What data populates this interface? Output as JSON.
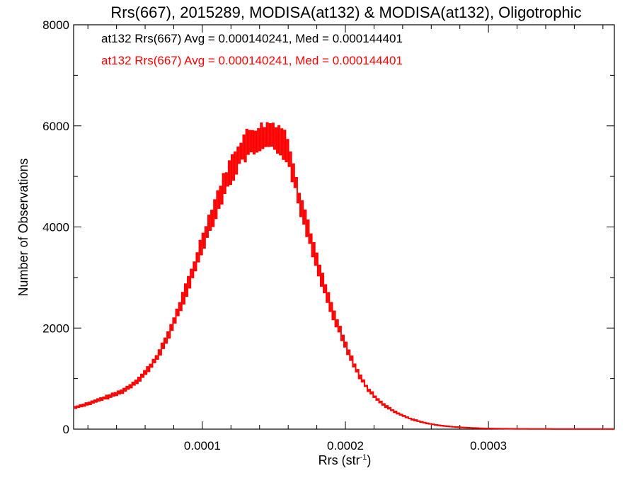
{
  "chart_data": {
    "type": "histogram",
    "title": "Rrs(667), 2015289, MODISA(at132) & MODISA(at132), Oligotrophic",
    "xlabel": "Rrs (str",
    "xlabel_sup": "-1",
    "xlabel_close": ")",
    "ylabel": "Number of Observations",
    "xlim": [
      1e-05,
      0.000388
    ],
    "ylim": [
      0,
      8000
    ],
    "x_ticks": [
      0.0001,
      0.0002,
      0.0003
    ],
    "x_tick_labels": [
      "0.0001",
      "0.0002",
      "0.0003"
    ],
    "y_ticks": [
      0,
      2000,
      4000,
      6000,
      8000
    ],
    "y_tick_labels": [
      "0",
      "2000",
      "4000",
      "6000",
      "8000"
    ],
    "annotations": [
      {
        "text": "at132 Rrs(667) Avg = 0.000140241, Med = 0.000144401",
        "color": "#000000"
      },
      {
        "text": "at132 Rrs(667) Avg = 0.000140241, Med = 0.000144401",
        "color": "#ff0000"
      }
    ],
    "series": [
      {
        "color": "#ff0000",
        "bins": {
          "x": [
            1e-05,
            1.6e-05,
            2.2e-05,
            2.8e-05,
            3.4e-05,
            4e-05,
            4.6e-05,
            5.2e-05,
            5.8e-05,
            6.4e-05,
            7e-05,
            7.6e-05,
            8.2e-05,
            8.8e-05,
            9.4e-05,
            0.0001,
            0.000106,
            0.000112,
            0.000118,
            0.000124,
            0.00013,
            0.000136,
            0.000142,
            0.000148,
            0.000152,
            0.000156,
            0.00016,
            0.000164,
            0.000168,
            0.000174,
            0.00018,
            0.000186,
            0.000192,
            0.000198,
            0.000204,
            0.00021,
            0.000216,
            0.000222,
            0.000228,
            0.000234,
            0.00024,
            0.000246,
            0.000252,
            0.000258,
            0.000264,
            0.00027,
            0.000276,
            0.000282,
            0.000288,
            0.000294,
            0.0003,
            0.000306,
            0.000312,
            0.000318,
            0.000324,
            0.00033,
            0.000336,
            0.000342,
            0.000348,
            0.000354,
            0.00036,
            0.000366,
            0.000372,
            0.000378,
            0.000384,
            0.000388
          ],
          "y": [
            420,
            470,
            520,
            580,
            640,
            700,
            780,
            900,
            1050,
            1250,
            1500,
            1850,
            2250,
            2700,
            3150,
            3700,
            4150,
            4600,
            5000,
            5350,
            5600,
            5700,
            5750,
            5800,
            5780,
            5700,
            5500,
            5050,
            4500,
            3950,
            3300,
            2750,
            2250,
            1800,
            1400,
            1050,
            780,
            600,
            460,
            350,
            270,
            200,
            150,
            110,
            80,
            60,
            45,
            33,
            24,
            18,
            13,
            10,
            8,
            6,
            5,
            4,
            3,
            3,
            2,
            2,
            2,
            1,
            1,
            1,
            1,
            1
          ]
        }
      }
    ]
  }
}
